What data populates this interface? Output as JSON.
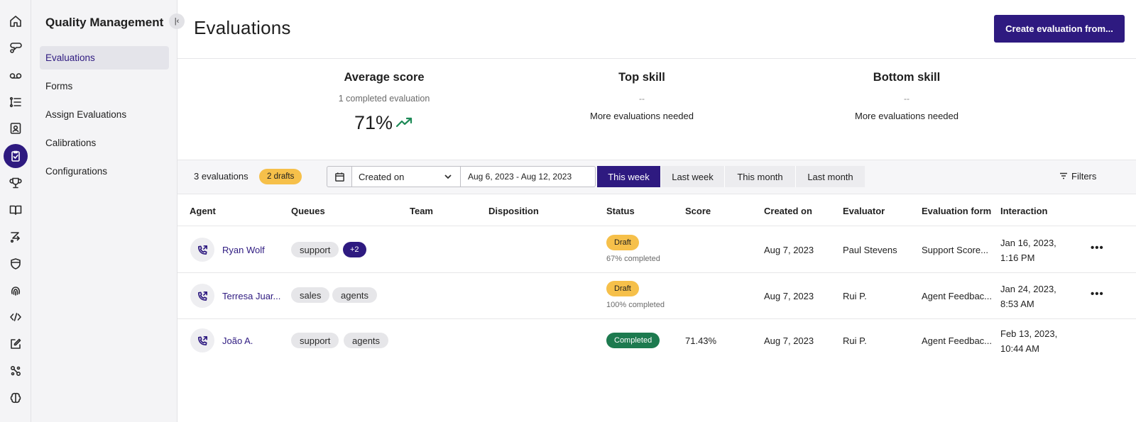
{
  "subnav": {
    "title": "Quality Management",
    "collapse_icon": "collapse-left-icon",
    "items": [
      {
        "label": "Evaluations",
        "active": true
      },
      {
        "label": "Forms"
      },
      {
        "label": "Assign Evaluations"
      },
      {
        "label": "Calibrations"
      },
      {
        "label": "Configurations"
      }
    ]
  },
  "rail": {
    "icons": [
      "home-icon",
      "ai-chat-icon",
      "voicemail-icon",
      "list-icon",
      "contacts-icon",
      "evaluation-clipboard-icon",
      "trophy-icon",
      "book-icon",
      "routing-icon",
      "shield-icon",
      "fingerprint-icon",
      "code-icon",
      "edit-icon",
      "settings-network-icon",
      "brain-icon"
    ],
    "active": "evaluation-clipboard-icon"
  },
  "header": {
    "title": "Evaluations",
    "create_button": "Create evaluation from..."
  },
  "stats": {
    "average": {
      "title": "Average score",
      "sub": "1 completed evaluation",
      "value": "71%",
      "trend_icon": "trend-up-icon"
    },
    "top": {
      "title": "Top skill",
      "dash": "--",
      "note": "More evaluations needed"
    },
    "bottom": {
      "title": "Bottom skill",
      "dash": "--",
      "note": "More evaluations needed"
    }
  },
  "toolbar": {
    "count": "3 evaluations",
    "drafts": "2 drafts",
    "date_type": "Created on",
    "date_range": "Aug 6, 2023 - Aug 12, 2023",
    "ranges": [
      "This week",
      "Last week",
      "This month",
      "Last month"
    ],
    "active_range": "This week",
    "filters": "Filters"
  },
  "columns": [
    "Agent",
    "Queues",
    "Team",
    "Disposition",
    "Status",
    "Score",
    "Created on",
    "Evaluator",
    "Evaluation form",
    "Interaction"
  ],
  "rows": [
    {
      "agent": "Ryan Wolf",
      "queues": [
        "support"
      ],
      "more": "+2",
      "status": "Draft",
      "status_sub": "67% completed",
      "score": "",
      "created": "Aug 7, 2023",
      "evaluator": "Paul Stevens",
      "form": "Support Score...",
      "interaction_1": "Jan 16, 2023,",
      "interaction_2": "1:16 PM",
      "menu": "•••"
    },
    {
      "agent": "Terresa Juar...",
      "queues": [
        "sales",
        "agents"
      ],
      "status": "Draft",
      "status_sub": "100% completed",
      "score": "",
      "created": "Aug 7, 2023",
      "evaluator": "Rui P.",
      "form": "Agent Feedbac...",
      "interaction_1": "Jan 24, 2023,",
      "interaction_2": "8:53 AM",
      "menu": "•••"
    },
    {
      "agent": "João A.",
      "queues": [
        "support",
        "agents"
      ],
      "status": "Completed",
      "status_sub": "",
      "score": "71.43%",
      "created": "Aug 7, 2023",
      "evaluator": "Rui P.",
      "form": "Agent Feedbac...",
      "interaction_1": "Feb 13, 2023,",
      "interaction_2": "10:44 AM"
    }
  ],
  "colors": {
    "accent": "#2e1a80",
    "draft": "#f6c04a",
    "completed": "#1d7a4f",
    "trend": "#1d8a57"
  }
}
